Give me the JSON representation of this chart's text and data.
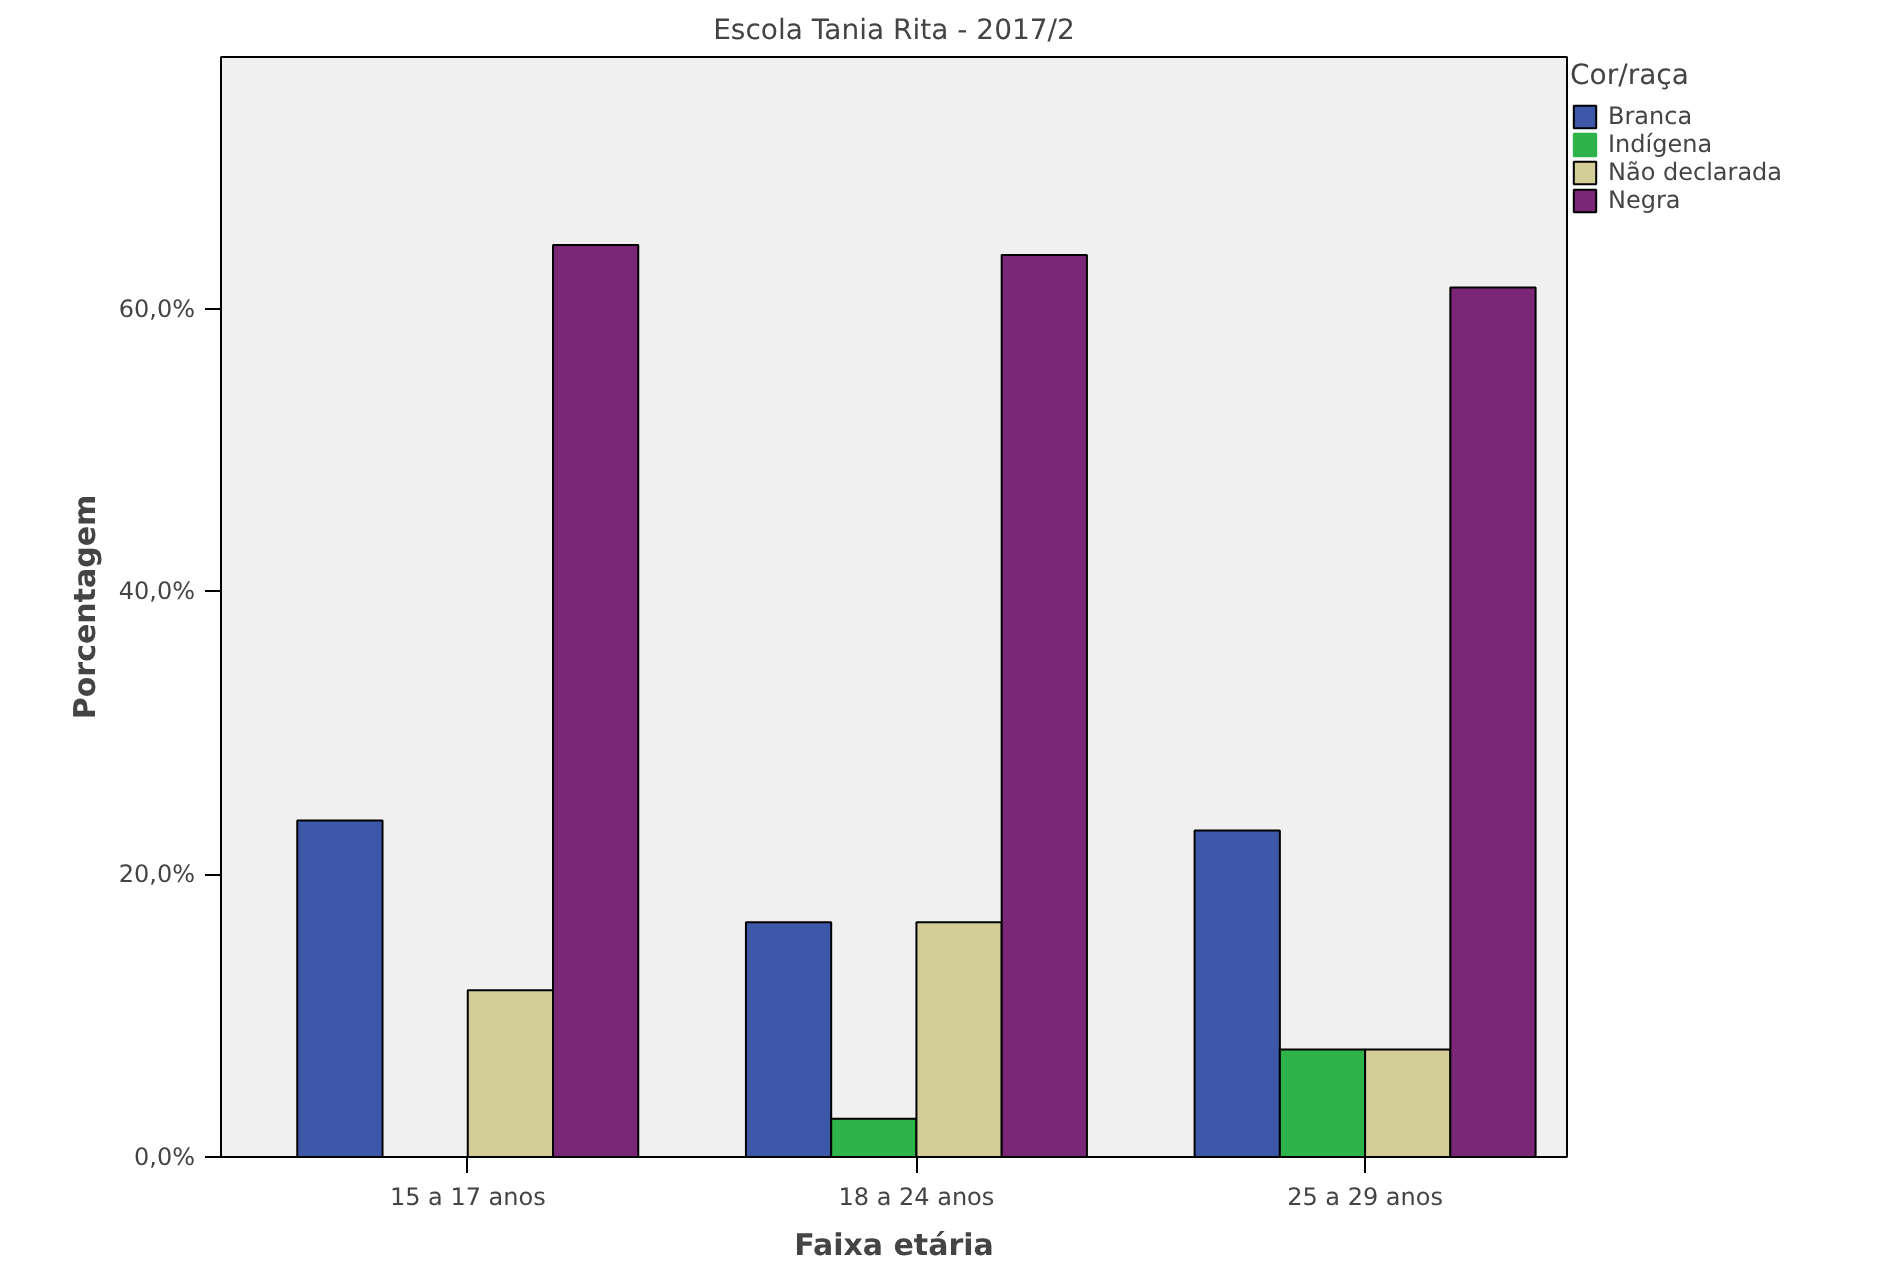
{
  "chart_data": {
    "type": "bar",
    "title": "Escola Tania Rita - 2017/2",
    "xlabel": "Faixa etária",
    "ylabel": "Porcentagem",
    "legend_title": "Cor/raça",
    "categories": [
      "15 a 17 anos",
      "18 a 24 anos",
      "25 a 29 anos"
    ],
    "series": [
      {
        "name": "Branca",
        "color": "#3d58a8",
        "values": [
          23.8,
          16.6,
          23.1
        ]
      },
      {
        "name": "Indígena",
        "color": "#2eb34a",
        "values": [
          0,
          2.7,
          7.6
        ]
      },
      {
        "name": "Não declarada",
        "color": "#d3ce97",
        "values": [
          11.8,
          16.6,
          7.6
        ]
      },
      {
        "name": "Negra",
        "color": "#7b2778",
        "values": [
          64.5,
          63.8,
          61.5
        ]
      }
    ],
    "ylim": [
      0,
      77.8
    ],
    "yticks": [
      {
        "value": 0,
        "label": "0,0%"
      },
      {
        "value": 20,
        "label": "20,0%"
      },
      {
        "value": 40,
        "label": "40,0%"
      },
      {
        "value": 60,
        "label": "60,0%"
      }
    ],
    "grid": false,
    "legend": "right"
  }
}
